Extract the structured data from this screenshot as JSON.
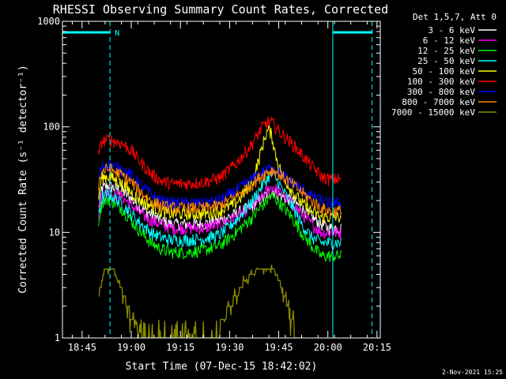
{
  "chart_data": {
    "type": "line",
    "title": "RHESSI Observing Summary Count Rates, Corrected",
    "xlabel": "Start Time (07-Dec-15 18:42:02)",
    "ylabel": "Corrected Count Rate (s⁻¹ detector⁻¹)",
    "footer": "2-Nov-2021 15:25",
    "legend_header": "Det 1,5,7, Att 0",
    "yscale": "log",
    "ylim": [
      1,
      1000
    ],
    "xlim": [
      -3,
      94
    ],
    "y_ticks": [
      {
        "v": 1,
        "label": "1"
      },
      {
        "v": 10,
        "label": "10"
      },
      {
        "v": 100,
        "label": "100"
      },
      {
        "v": 1000,
        "label": "1000"
      }
    ],
    "x_ticks": [
      {
        "m": 3,
        "label": "18:45"
      },
      {
        "m": 18,
        "label": "19:00"
      },
      {
        "m": 33,
        "label": "19:15"
      },
      {
        "m": 48,
        "label": "19:30"
      },
      {
        "m": 63,
        "label": "19:45"
      },
      {
        "m": 78,
        "label": "20:00"
      },
      {
        "m": 93,
        "label": "20:15"
      }
    ],
    "annotations": {
      "day_night_flag": "N",
      "night_start_min": 11.5,
      "night_end_min": 79.5,
      "dashed_lines_min": [
        11.5,
        91.5
      ],
      "solid_lines_min": [
        -3,
        79.5
      ]
    },
    "series": [
      {
        "name": "3 - 6 keV",
        "color": "#ffffff",
        "points": [
          [
            8,
            17
          ],
          [
            9,
            26
          ],
          [
            11,
            28
          ],
          [
            12,
            27
          ],
          [
            15,
            25
          ],
          [
            18,
            21
          ],
          [
            21,
            17
          ],
          [
            24,
            15
          ],
          [
            27,
            13
          ],
          [
            30,
            12
          ],
          [
            35,
            12
          ],
          [
            40,
            12
          ],
          [
            45,
            13
          ],
          [
            50,
            15
          ],
          [
            55,
            18
          ],
          [
            58,
            21
          ],
          [
            60,
            24
          ],
          [
            61,
            25
          ],
          [
            62,
            24
          ],
          [
            64,
            22
          ],
          [
            67,
            20
          ],
          [
            70,
            17
          ],
          [
            73,
            14
          ],
          [
            76,
            12
          ],
          [
            78,
            11
          ],
          [
            82,
            11
          ]
        ]
      },
      {
        "name": "6 - 12 keV",
        "color": "#ff00ff",
        "points": [
          [
            8,
            15
          ],
          [
            9,
            23
          ],
          [
            11,
            24
          ],
          [
            12,
            23
          ],
          [
            15,
            22
          ],
          [
            18,
            18
          ],
          [
            21,
            15
          ],
          [
            24,
            13
          ],
          [
            27,
            12
          ],
          [
            30,
            11
          ],
          [
            35,
            11
          ],
          [
            40,
            11
          ],
          [
            45,
            12
          ],
          [
            50,
            14
          ],
          [
            55,
            18
          ],
          [
            58,
            22
          ],
          [
            60,
            26
          ],
          [
            61,
            27
          ],
          [
            62,
            26
          ],
          [
            64,
            23
          ],
          [
            67,
            19
          ],
          [
            70,
            15
          ],
          [
            73,
            12
          ],
          [
            76,
            10
          ],
          [
            78,
            10
          ],
          [
            82,
            10
          ]
        ]
      },
      {
        "name": "12 - 25 keV",
        "color": "#00ff00",
        "points": [
          [
            8,
            13
          ],
          [
            9,
            19
          ],
          [
            11,
            21
          ],
          [
            12,
            20
          ],
          [
            15,
            17
          ],
          [
            18,
            13
          ],
          [
            21,
            10
          ],
          [
            24,
            8
          ],
          [
            27,
            7
          ],
          [
            30,
            6.5
          ],
          [
            35,
            6.5
          ],
          [
            40,
            6.8
          ],
          [
            45,
            7.5
          ],
          [
            50,
            10
          ],
          [
            55,
            14
          ],
          [
            58,
            18
          ],
          [
            60,
            21
          ],
          [
            61,
            22
          ],
          [
            62,
            21
          ],
          [
            64,
            18
          ],
          [
            67,
            14
          ],
          [
            70,
            10
          ],
          [
            73,
            7.5
          ],
          [
            76,
            6
          ],
          [
            78,
            6
          ],
          [
            82,
            6
          ]
        ]
      },
      {
        "name": "25 - 50 keV",
        "color": "#00ffff",
        "points": [
          [
            8,
            15
          ],
          [
            9,
            21
          ],
          [
            11,
            23
          ],
          [
            12,
            22
          ],
          [
            15,
            19
          ],
          [
            18,
            15
          ],
          [
            21,
            12
          ],
          [
            24,
            10
          ],
          [
            27,
            9
          ],
          [
            30,
            8.5
          ],
          [
            35,
            8.5
          ],
          [
            40,
            8.7
          ],
          [
            45,
            9.5
          ],
          [
            50,
            13
          ],
          [
            55,
            20
          ],
          [
            58,
            28
          ],
          [
            60,
            34
          ],
          [
            61,
            35
          ],
          [
            62,
            33
          ],
          [
            64,
            26
          ],
          [
            67,
            18
          ],
          [
            70,
            12
          ],
          [
            73,
            9
          ],
          [
            76,
            8
          ],
          [
            78,
            8
          ],
          [
            82,
            8
          ]
        ]
      },
      {
        "name": "50 - 100 keV",
        "color": "#ffff00",
        "points": [
          [
            8,
            22
          ],
          [
            9,
            33
          ],
          [
            11,
            34
          ],
          [
            12,
            33
          ],
          [
            15,
            29
          ],
          [
            18,
            24
          ],
          [
            21,
            20
          ],
          [
            24,
            18
          ],
          [
            27,
            16
          ],
          [
            30,
            15
          ],
          [
            35,
            15
          ],
          [
            40,
            15
          ],
          [
            45,
            16
          ],
          [
            50,
            19
          ],
          [
            55,
            30
          ],
          [
            57,
            50
          ],
          [
            59,
            85
          ],
          [
            60,
            95
          ],
          [
            61,
            80
          ],
          [
            62,
            55
          ],
          [
            64,
            35
          ],
          [
            67,
            25
          ],
          [
            70,
            19
          ],
          [
            73,
            16
          ],
          [
            76,
            14
          ],
          [
            78,
            14
          ],
          [
            82,
            14
          ]
        ]
      },
      {
        "name": "100 - 300 keV",
        "color": "#ff0000",
        "points": [
          [
            8,
            55
          ],
          [
            9,
            72
          ],
          [
            11,
            76
          ],
          [
            12,
            75
          ],
          [
            15,
            70
          ],
          [
            18,
            60
          ],
          [
            21,
            46
          ],
          [
            24,
            36
          ],
          [
            27,
            31
          ],
          [
            30,
            29
          ],
          [
            35,
            29
          ],
          [
            40,
            30
          ],
          [
            45,
            33
          ],
          [
            50,
            45
          ],
          [
            55,
            70
          ],
          [
            58,
            100
          ],
          [
            60,
            112
          ],
          [
            61,
            110
          ],
          [
            62,
            100
          ],
          [
            64,
            85
          ],
          [
            67,
            70
          ],
          [
            70,
            55
          ],
          [
            73,
            43
          ],
          [
            76,
            34
          ],
          [
            78,
            32
          ],
          [
            82,
            32
          ]
        ]
      },
      {
        "name": "300 - 800 keV",
        "color": "#0000ff",
        "points": [
          [
            8,
            32
          ],
          [
            9,
            42
          ],
          [
            11,
            44
          ],
          [
            12,
            43
          ],
          [
            15,
            40
          ],
          [
            18,
            35
          ],
          [
            21,
            28
          ],
          [
            24,
            23
          ],
          [
            27,
            20
          ],
          [
            30,
            19
          ],
          [
            35,
            19
          ],
          [
            40,
            19
          ],
          [
            45,
            20
          ],
          [
            50,
            25
          ],
          [
            55,
            32
          ],
          [
            58,
            37
          ],
          [
            60,
            40
          ],
          [
            61,
            41
          ],
          [
            62,
            40
          ],
          [
            64,
            35
          ],
          [
            67,
            30
          ],
          [
            70,
            26
          ],
          [
            73,
            22
          ],
          [
            76,
            20
          ],
          [
            78,
            19
          ],
          [
            82,
            19
          ]
        ]
      },
      {
        "name": "800 - 7000 keV",
        "color": "#ff8800",
        "points": [
          [
            8,
            28
          ],
          [
            9,
            38
          ],
          [
            11,
            40
          ],
          [
            12,
            39
          ],
          [
            15,
            35
          ],
          [
            18,
            30
          ],
          [
            21,
            24
          ],
          [
            24,
            20
          ],
          [
            27,
            18
          ],
          [
            30,
            17
          ],
          [
            35,
            17
          ],
          [
            40,
            17
          ],
          [
            45,
            18
          ],
          [
            50,
            22
          ],
          [
            55,
            29
          ],
          [
            58,
            35
          ],
          [
            60,
            38
          ],
          [
            61,
            39
          ],
          [
            62,
            38
          ],
          [
            64,
            34
          ],
          [
            67,
            29
          ],
          [
            70,
            24
          ],
          [
            73,
            20
          ],
          [
            76,
            17
          ],
          [
            78,
            16
          ],
          [
            82,
            16
          ]
        ]
      },
      {
        "name": "7000 - 15000 keV",
        "color": "#888800",
        "points": [
          [
            8,
            2.4
          ],
          [
            9,
            3.5
          ],
          [
            10,
            4.6
          ],
          [
            11,
            4.2
          ],
          [
            12,
            4.5
          ],
          [
            13,
            4.2
          ],
          [
            14,
            3.5
          ],
          [
            15,
            3.0
          ],
          [
            16,
            2.4
          ],
          [
            17,
            2.0
          ],
          [
            18,
            1.6
          ],
          [
            19,
            1.3
          ],
          [
            20,
            1.1
          ],
          [
            21,
            1.3
          ],
          [
            22,
            1.0
          ],
          [
            45,
            1.2
          ],
          [
            46,
            1.6
          ],
          [
            48,
            2.0
          ],
          [
            50,
            2.5
          ],
          [
            52,
            3.2
          ],
          [
            54,
            3.8
          ],
          [
            56,
            4.3
          ],
          [
            58,
            4.6
          ],
          [
            60,
            4.3
          ],
          [
            61,
            4.6
          ],
          [
            62,
            4.1
          ],
          [
            63,
            3.6
          ],
          [
            64,
            3.0
          ],
          [
            65,
            2.4
          ],
          [
            66,
            1.8
          ],
          [
            67,
            1.4
          ],
          [
            68,
            1.2
          ],
          [
            69,
            1.1
          ],
          [
            70,
            1.0
          ]
        ]
      }
    ]
  }
}
